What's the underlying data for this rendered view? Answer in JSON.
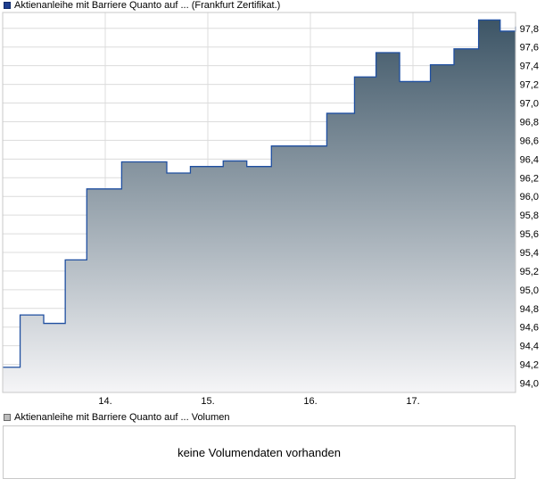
{
  "legend": {
    "price_series": "Aktienanleihe mit Barriere Quanto auf ... (Frankfurt Zertifikat.)",
    "volume_series": "Aktienanleihe mit Barriere Quanto auf ... Volumen"
  },
  "volume_panel": {
    "message": "keine Volumendaten vorhanden"
  },
  "colors": {
    "line": "#1f4fa0",
    "fill_top": "#3d5566",
    "fill_bottom": "#f5f5f7",
    "grid": "#dcdcdc",
    "frame": "#c8c8c8"
  },
  "chart_data": {
    "type": "area",
    "step": true,
    "title": "",
    "xlabel": "",
    "ylabel": "",
    "ylim": [
      93.9,
      97.97
    ],
    "xlim": [
      13.0,
      18.0
    ],
    "y_ticks": [
      "94,0",
      "94,2",
      "94,4",
      "94,6",
      "94,8",
      "95,0",
      "95,2",
      "95,4",
      "95,6",
      "95,8",
      "96,0",
      "96,2",
      "96,4",
      "96,6",
      "96,8",
      "97,0",
      "97,2",
      "97,4",
      "97,6",
      "97,8"
    ],
    "y_tick_values": [
      94.0,
      94.2,
      94.4,
      94.6,
      94.8,
      95.0,
      95.2,
      95.4,
      95.6,
      95.8,
      96.0,
      96.2,
      96.4,
      96.6,
      96.8,
      97.0,
      97.2,
      97.4,
      97.6,
      97.8
    ],
    "x_ticks": [
      "14.",
      "15.",
      "16.",
      "17."
    ],
    "x_tick_values": [
      14,
      15,
      16,
      17
    ],
    "grid": true,
    "axis_side": "right",
    "series": [
      {
        "x": [
          13.0,
          13.17,
          13.4,
          13.61,
          13.82,
          14.16,
          14.6,
          14.83,
          15.15,
          15.38,
          15.62,
          16.16,
          16.16,
          16.43,
          16.64,
          16.87,
          17.17,
          17.4,
          17.64,
          17.85,
          18.0
        ],
        "y": [
          94.17,
          94.73,
          94.64,
          95.32,
          96.08,
          96.37,
          96.25,
          96.32,
          96.38,
          96.32,
          96.54,
          96.54,
          96.89,
          97.28,
          97.54,
          97.23,
          97.41,
          97.58,
          97.89,
          97.77,
          97.82
        ]
      }
    ]
  }
}
